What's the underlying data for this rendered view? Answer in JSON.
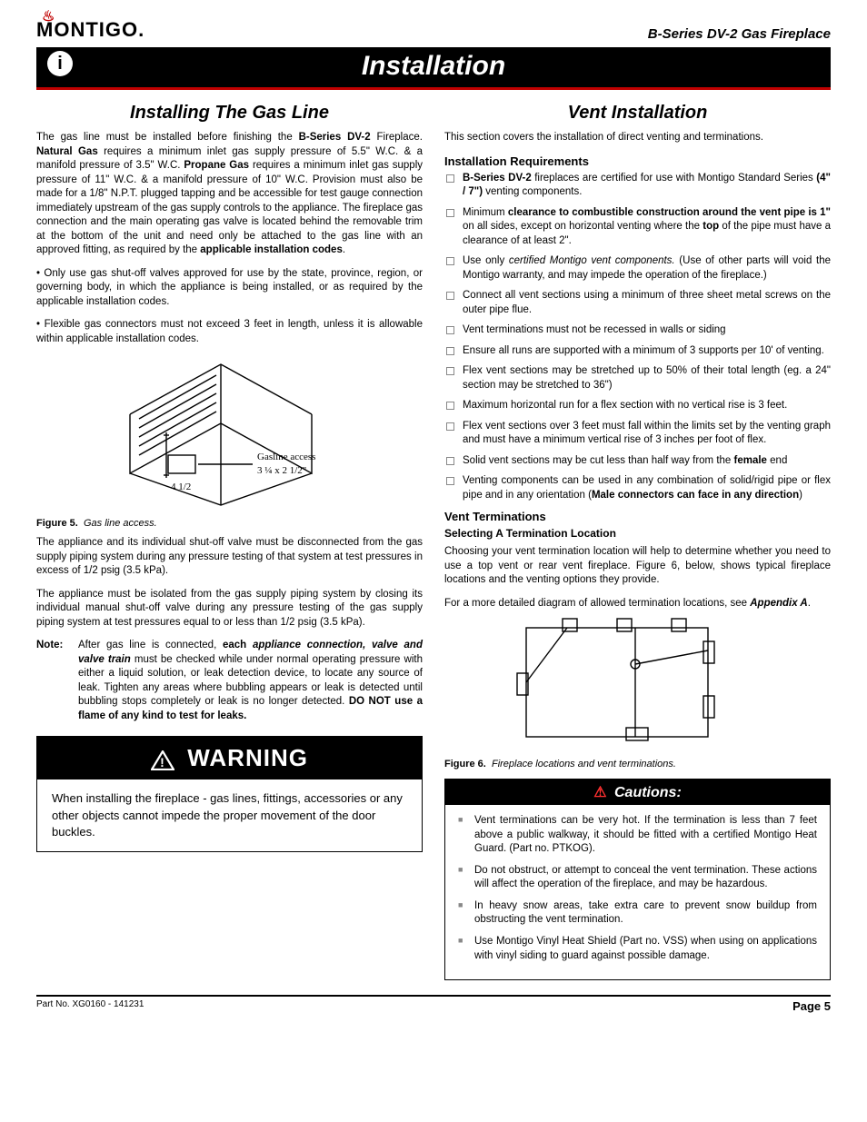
{
  "header": {
    "brand": "MONTIGO",
    "product": "B-Series DV-2 Gas Fireplace"
  },
  "main_bar": "Installation",
  "left": {
    "title": "Installing The Gas Line",
    "p1_a": "The gas line must be installed before finishing the ",
    "p1_b": "B-Series DV-2",
    "p1_c": " Fireplace. ",
    "p1_d": "Natural Gas",
    "p1_e": " requires a minimum  inlet gas supply  pressure of 5.5\" W.C. & a manifold pressure of 3.5\" W.C. ",
    "p1_f": "Propane Gas",
    "p1_g": " requires a minimum inlet gas supply pressure of 11\" W.C. & a manifold pressure of 10\" W.C. Provision must also be made for a 1/8\" N.P.T. plugged tapping and be accessible for test gauge connection immediately upstream of the gas supply controls to the appliance. The fireplace gas connection and the main operating gas valve is located behind the removable trim at the bottom of the unit and need only be attached to the gas line  with an approved fitting, as required by the ",
    "p1_h": "applicable installation codes",
    "p1_i": ".",
    "bullet1": "• Only use gas shut-off valves approved for use by the state, province, region, or governing body, in which the appliance is being installed, or as required by the applicable installation codes.",
    "bullet2": "• Flexible gas connectors must not exceed 3 feet in length, unless it is allowable  within applicable installation codes.",
    "fig5_label_a": "Gasline access",
    "fig5_label_b": "3 ¼  x 2 1/2\"",
    "fig5_label_c": "4 1/2",
    "fig5_num": "Figure 5.",
    "fig5_cap": "Gas line access.",
    "p2": "The appliance and its individual shut-off valve must be disconnected from the gas supply piping system during any pressure testing of that system at test pressures in excess of 1/2 psig (3.5 kPa).",
    "p3": "The appliance must be isolated from the gas supply piping system by closing its individual manual shut-off valve during any pressure testing of the gas supply piping system at test pressures equal to or less than 1/2 psig (3.5 kPa).",
    "note_label": "Note:",
    "note_a": "After gas line is connected, ",
    "note_b": "each ",
    "note_c": "appliance connection, valve and valve train",
    "note_d": " must be checked while under normal operating pressure with either a liquid solution, or leak detection device, to locate any source of leak. Tighten any areas where bubbling appears or leak is detected until bubbling stops completely or leak is no longer detected. ",
    "note_e": "DO  NOT use a flame of any kind to test for leaks.",
    "warn_title": "WARNING",
    "warn_body": "When installing the fireplace - gas lines, fittings, accessories or any other objects cannot impede the proper movement of the door buckles."
  },
  "right": {
    "title": "Vent  Installation",
    "intro": "This section covers the installation of direct venting and terminations.",
    "req_heading": "Installation Requirements",
    "reqs": [
      {
        "a": "",
        "b": "B-Series DV-2",
        "c": " fireplaces are certified for use with Montigo Standard Series ",
        "d": "(4\" / 7\")",
        "e": " venting components."
      },
      {
        "a": "Minimum ",
        "b": "clearance to combustible construction around the vent pipe is 1\"",
        "c": " on all sides, except on horizontal venting where the ",
        "d": "top",
        "e": " of the pipe must have a clearance of at least 2\"."
      },
      {
        "a": "Use only ",
        "b": "",
        "c": "",
        "d": "",
        "e": "",
        "it": "certified Montigo vent components.",
        "f": " (Use of other parts will void the Montigo warranty, and may impede the operation of the fireplace.)"
      },
      {
        "a": "Connect all vent sections using a minimum of three sheet metal screws on the outer pipe flue."
      },
      {
        "a": "Vent terminations must not be recessed in walls or siding"
      },
      {
        "a": "Ensure all runs are supported with a minimum of 3 supports per 10' of venting."
      },
      {
        "a": "Flex vent sections may be stretched up to 50% of their total length (eg. a 24\" section may be stretched to 36\")"
      },
      {
        "a": "Maximum horizontal run for a flex section with no vertical rise is 3 feet."
      },
      {
        "a": "Flex vent sections over 3 feet must fall within the limits set by the venting graph and must have a minimum vertical rise of 3 inches per foot of flex."
      },
      {
        "a": "Solid vent sections may be cut less than half way from the ",
        "b": "female",
        "c": " end"
      },
      {
        "a": "Venting components can be used in any combination of solid/rigid pipe or flex pipe and in any orientation (",
        "b": "Male connectors can face in any direction",
        "c": ")"
      }
    ],
    "vt_heading": "Vent Terminations",
    "vt_sub": "Selecting A Termination Location",
    "vt_p1": "Choosing your vent termination location will help to determine whether you need to use a top vent or rear vent fireplace. Figure 6, below, shows typical fireplace locations and the venting options they provide.",
    "vt_p2_a": "For a more detailed diagram of allowed termination locations, see ",
    "vt_p2_b": "Appendix A",
    "vt_p2_c": ".",
    "fig6_num": "Figure 6.",
    "fig6_cap": "Fireplace locations and vent terminations.",
    "caut_title": "Cautions:",
    "cauts": [
      "Vent terminations can be very hot. If the termination is less than 7 feet above a public walkway, it should be fitted with a certified Montigo Heat Guard. (Part no. PTKOG).",
      "Do not obstruct, or attempt to conceal the vent termination. These actions will affect the operation of the fireplace, and may be hazardous.",
      "In heavy snow areas, take extra care to prevent snow buildup from obstructing the vent termination.",
      "Use Montigo Vinyl Heat Shield (Part no. VSS) when using on applications with vinyl siding to guard against possible damage."
    ]
  },
  "footer": {
    "left": "Part No. XG0160 - 141231",
    "right": "Page 5"
  }
}
